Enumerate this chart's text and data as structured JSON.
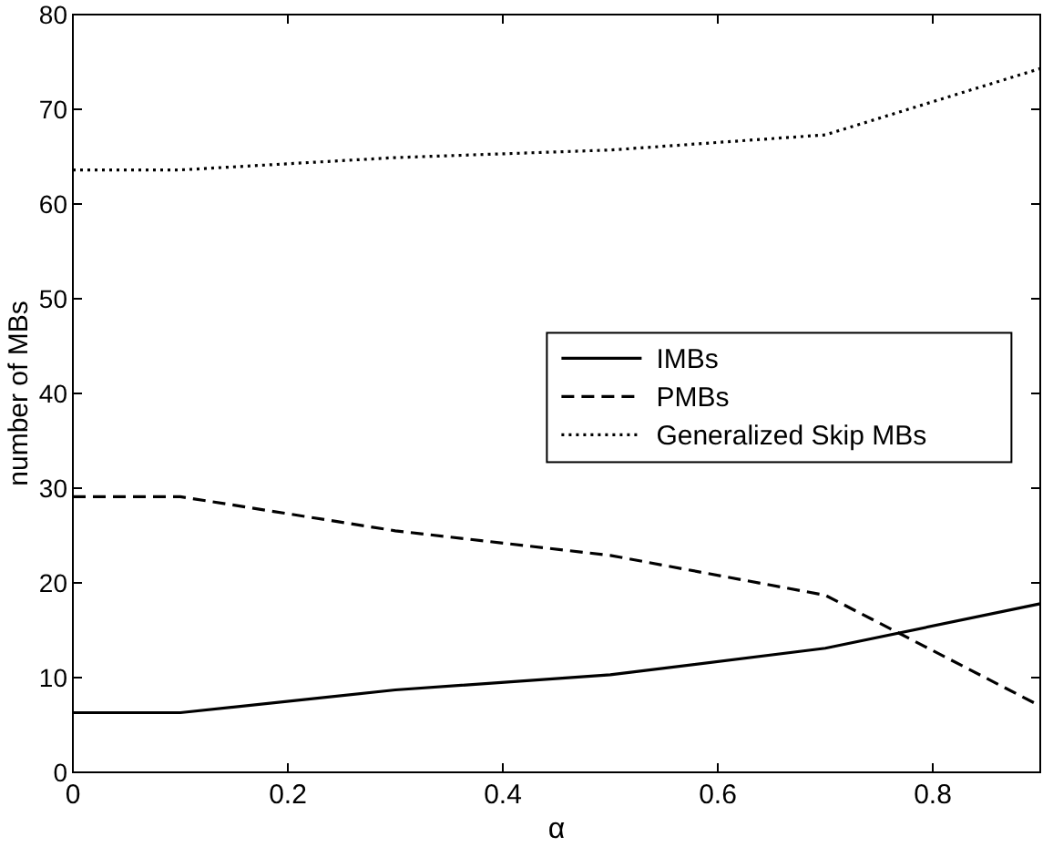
{
  "chart_data": {
    "type": "line",
    "xlabel": "α",
    "ylabel": "number of MBs",
    "x": [
      0,
      0.1,
      0.3,
      0.5,
      0.7,
      0.9
    ],
    "xlim": [
      0,
      0.9
    ],
    "xticks": [
      0,
      0.2,
      0.4,
      0.6,
      0.8
    ],
    "ylim": [
      0,
      80
    ],
    "yticks": [
      0,
      10,
      20,
      30,
      40,
      50,
      60,
      70,
      80
    ],
    "grid": false,
    "legend": "right",
    "series": [
      {
        "name": "IMBs",
        "color": "#000000",
        "line_style": "solid",
        "values": [
          6.3,
          6.3,
          8.7,
          10.3,
          13.1,
          17.8
        ]
      },
      {
        "name": "PMBs",
        "color": "#000000",
        "line_style": "dashed",
        "values": [
          29.1,
          29.1,
          25.5,
          22.9,
          18.7,
          7
        ]
      },
      {
        "name": "Generalized Skip MBs",
        "color": "#000000",
        "line_style": "dotted",
        "values": [
          63.6,
          63.6,
          64.9,
          65.7,
          67.3,
          74.3
        ]
      }
    ]
  }
}
